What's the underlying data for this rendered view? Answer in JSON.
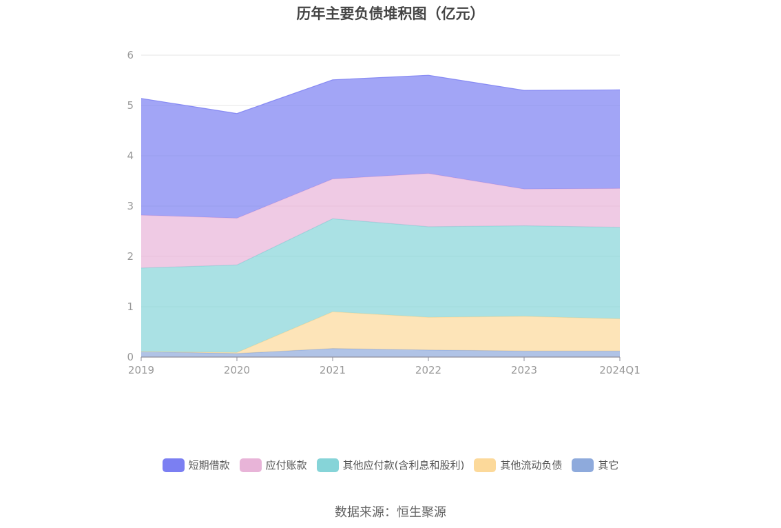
{
  "chart_data": {
    "type": "area",
    "stacked": true,
    "title": "历年主要负债堆积图（亿元）",
    "categories": [
      "2019",
      "2020",
      "2021",
      "2022",
      "2023",
      "2024Q1"
    ],
    "ylim": [
      0,
      6
    ],
    "yticks": [
      "0",
      "1",
      "2",
      "3",
      "4",
      "5",
      "6"
    ],
    "grid": true,
    "legend_position": "bottom",
    "series": [
      {
        "name": "其它",
        "values": [
          0.11,
          0.07,
          0.17,
          0.14,
          0.12,
          0.12
        ],
        "color": "#8eaadc"
      },
      {
        "name": "其他流动负债",
        "values": [
          0.0,
          0.02,
          0.73,
          0.65,
          0.69,
          0.64
        ],
        "color": "#fcd99a"
      },
      {
        "name": "其他应付款(含利息和股利)",
        "values": [
          1.66,
          1.74,
          1.85,
          1.8,
          1.8,
          1.82
        ],
        "color": "#86d4d8"
      },
      {
        "name": "应付账款",
        "values": [
          1.05,
          0.93,
          0.79,
          1.06,
          0.73,
          0.77
        ],
        "color": "#e8b4d8"
      },
      {
        "name": "短期借款",
        "values": [
          2.32,
          2.08,
          1.97,
          1.95,
          1.96,
          1.96
        ],
        "color": "#7b7ff2"
      }
    ]
  },
  "legend": {
    "items": [
      {
        "label": "短期借款",
        "color": "#7b7ff2"
      },
      {
        "label": "应付账款",
        "color": "#e8b4d8"
      },
      {
        "label": "其他应付款(含利息和股利)",
        "color": "#86d4d8"
      },
      {
        "label": "其他流动负债",
        "color": "#fcd99a"
      },
      {
        "label": "其它",
        "color": "#8eaadc"
      }
    ]
  },
  "source": "数据来源：恒生聚源"
}
